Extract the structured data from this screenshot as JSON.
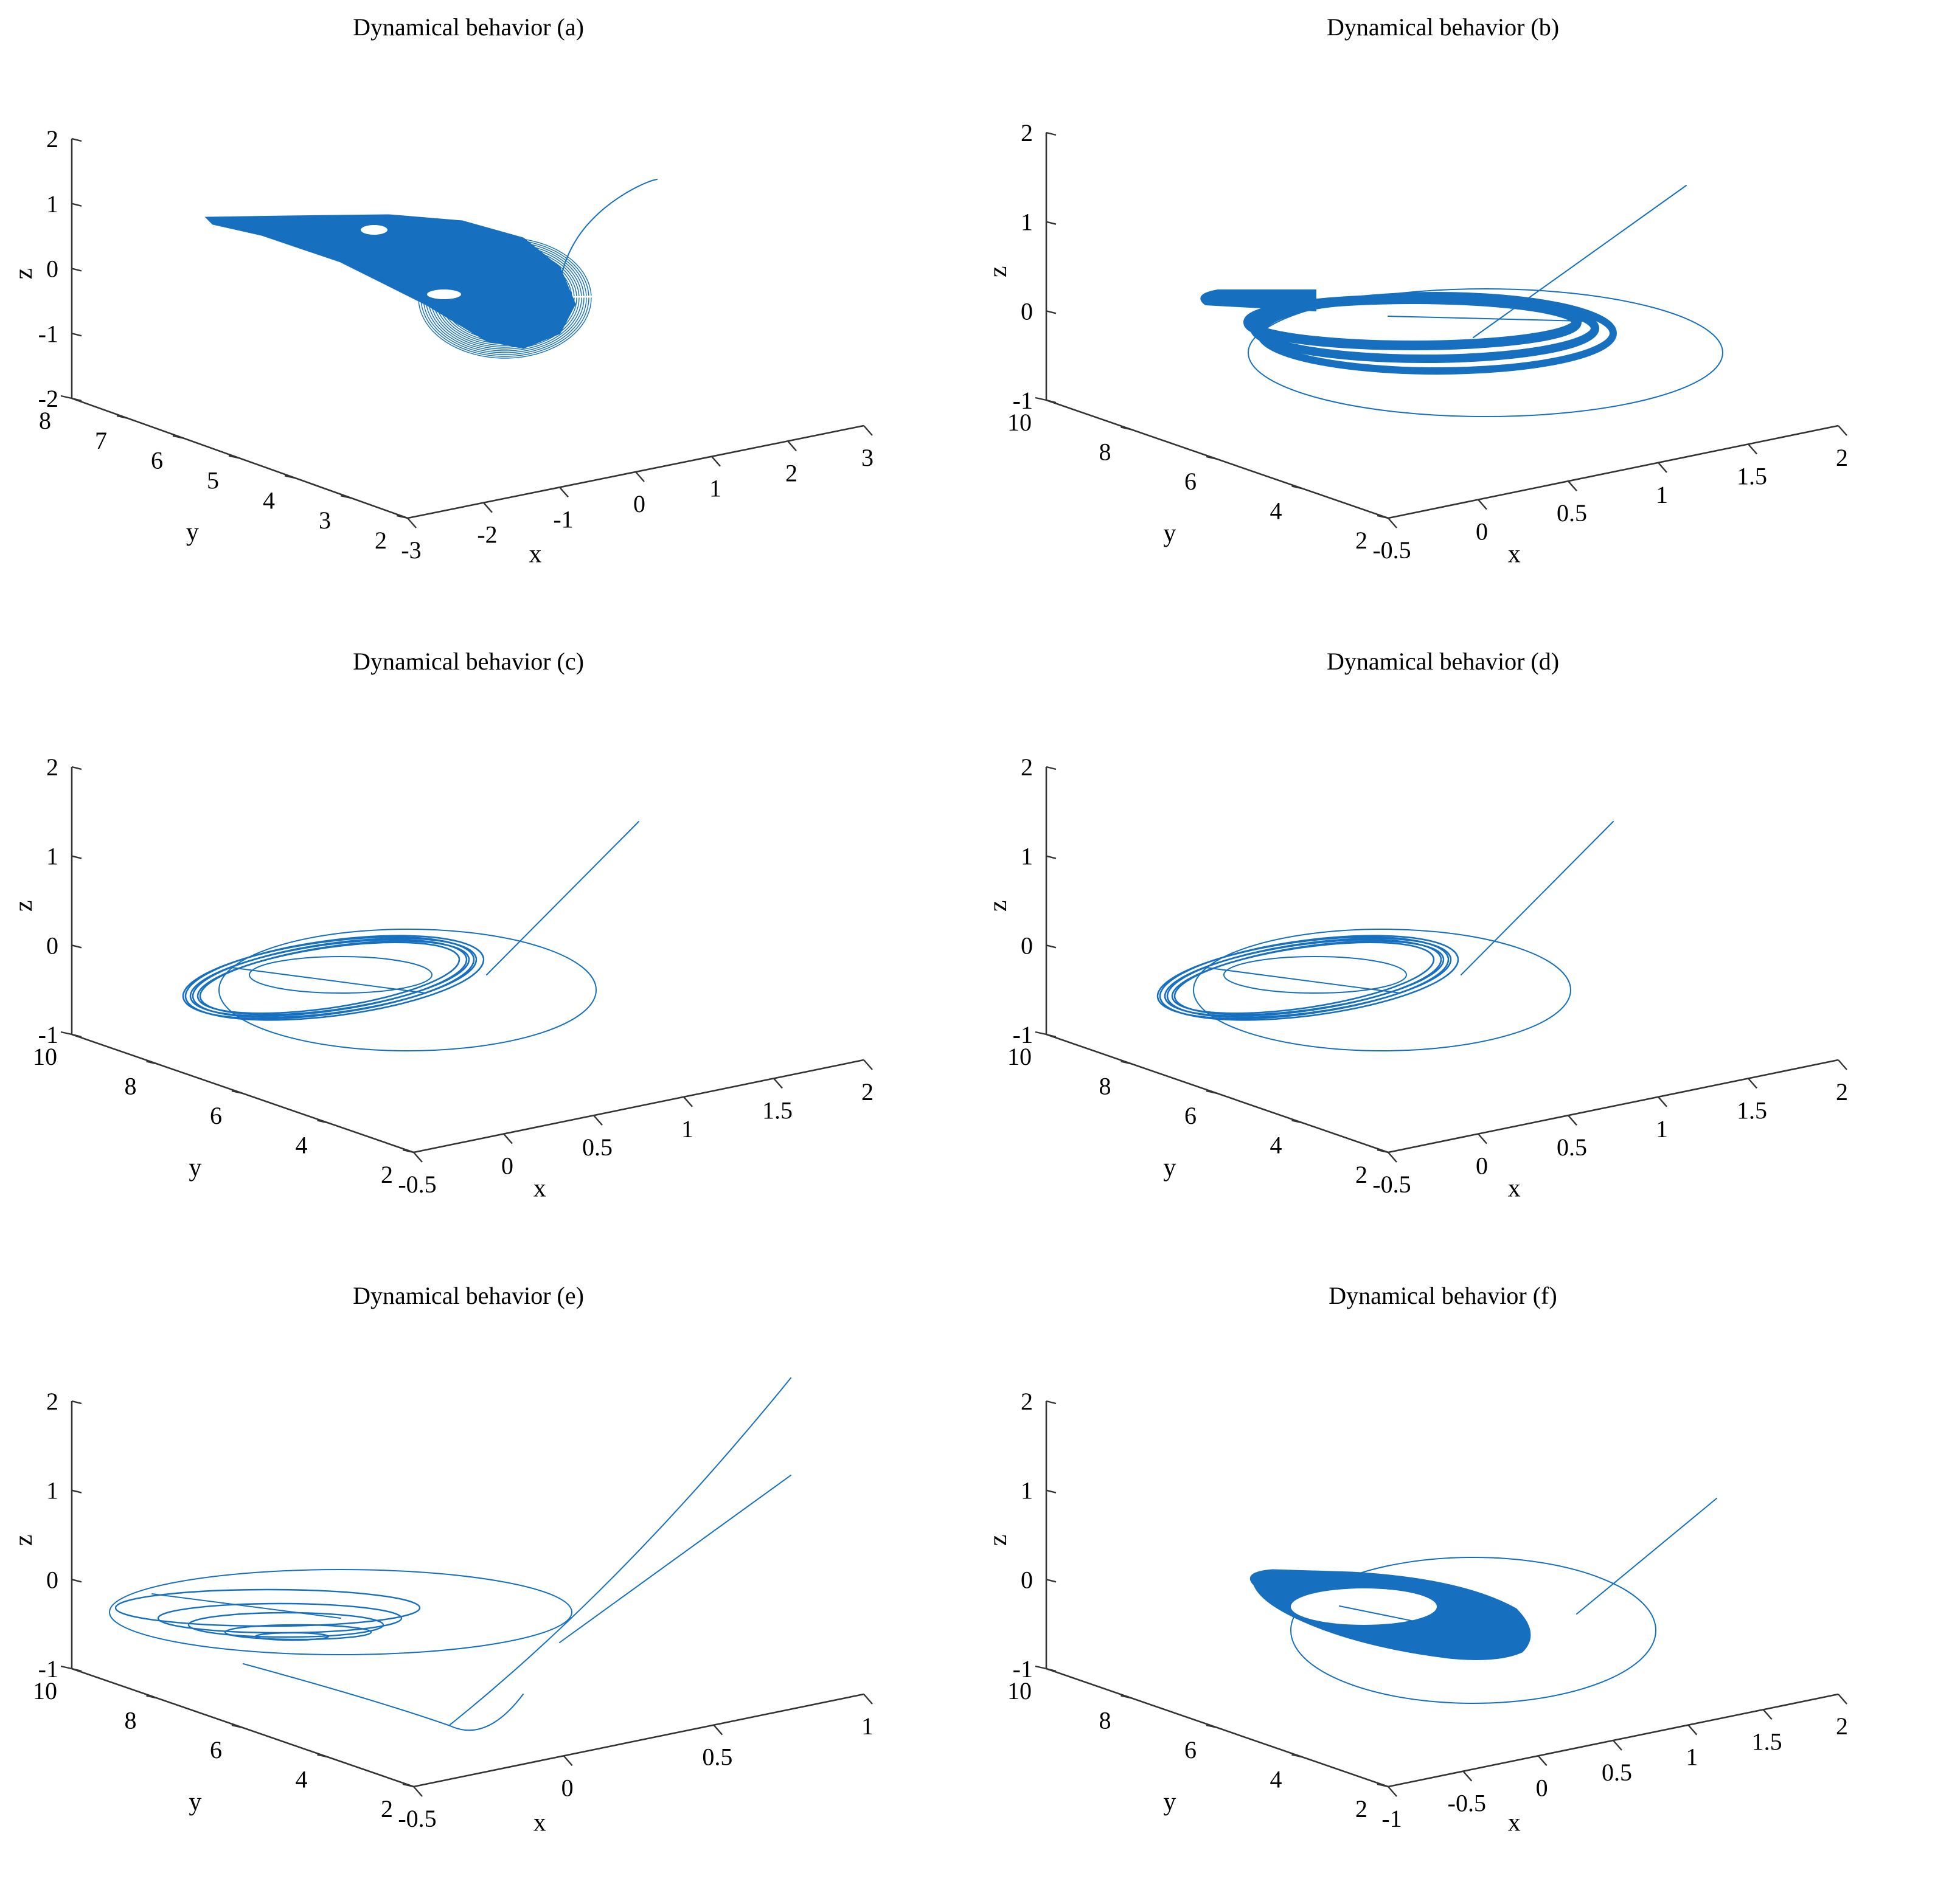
{
  "figure": {
    "layout": "3x2 grid of 3D phase-space trajectory plots"
  },
  "chart_data": [
    {
      "type": "line3d",
      "panel": "a",
      "title": "Dynamical behavior (a)",
      "xlabel": "x",
      "ylabel": "y",
      "zlabel": "z",
      "xlim": [
        -3,
        3
      ],
      "ylim": [
        2,
        8
      ],
      "zlim": [
        -2,
        2
      ],
      "xticks": [
        "-3",
        "-2",
        "-1",
        "0",
        "1",
        "2",
        "3"
      ],
      "yticks": [
        "2",
        "3",
        "4",
        "5",
        "6",
        "7",
        "8"
      ],
      "zticks": [
        "-2",
        "-1",
        "0",
        "1",
        "2"
      ],
      "attractor": {
        "kind": "dense-scroll",
        "color": "#1670bf"
      }
    },
    {
      "type": "line3d",
      "panel": "b",
      "title": "Dynamical behavior (b)",
      "xlabel": "x",
      "ylabel": "y",
      "zlabel": "z",
      "xlim": [
        -0.5,
        2
      ],
      "ylim": [
        2,
        10
      ],
      "zlim": [
        -1,
        2
      ],
      "xticks": [
        "-0.5",
        "0",
        "0.5",
        "1",
        "1.5",
        "2"
      ],
      "yticks": [
        "2",
        "4",
        "6",
        "8",
        "10"
      ],
      "zticks": [
        "-1",
        "0",
        "1",
        "2"
      ],
      "attractor": {
        "kind": "thick-bands",
        "color": "#1670bf"
      }
    },
    {
      "type": "line3d",
      "panel": "c",
      "title": "Dynamical behavior (c)",
      "xlabel": "x",
      "ylabel": "y",
      "zlabel": "z",
      "xlim": [
        -0.5,
        2
      ],
      "ylim": [
        2,
        10
      ],
      "zlim": [
        -1,
        2
      ],
      "xticks": [
        "-0.5",
        "0",
        "0.5",
        "1",
        "1.5",
        "2"
      ],
      "yticks": [
        "2",
        "4",
        "6",
        "8",
        "10"
      ],
      "zticks": [
        "-1",
        "0",
        "1",
        "2"
      ],
      "attractor": {
        "kind": "few-loops",
        "color": "#1670bf"
      }
    },
    {
      "type": "line3d",
      "panel": "d",
      "title": "Dynamical behavior (d)",
      "xlabel": "x",
      "ylabel": "y",
      "zlabel": "z",
      "xlim": [
        -0.5,
        2
      ],
      "ylim": [
        2,
        10
      ],
      "zlim": [
        -1,
        2
      ],
      "xticks": [
        "-0.5",
        "0",
        "0.5",
        "1",
        "1.5",
        "2"
      ],
      "yticks": [
        "2",
        "4",
        "6",
        "8",
        "10"
      ],
      "zticks": [
        "-1",
        "0",
        "1",
        "2"
      ],
      "attractor": {
        "kind": "few-loops",
        "color": "#1670bf"
      }
    },
    {
      "type": "line3d",
      "panel": "e",
      "title": "Dynamical behavior (e)",
      "xlabel": "x",
      "ylabel": "y",
      "zlabel": "z",
      "xlim": [
        -0.5,
        1
      ],
      "ylim": [
        2,
        10
      ],
      "zlim": [
        -1,
        2
      ],
      "xticks": [
        "-0.5",
        "0",
        "0.5",
        "1"
      ],
      "yticks": [
        "2",
        "4",
        "6",
        "8",
        "10"
      ],
      "zticks": [
        "-1",
        "0",
        "1",
        "2"
      ],
      "attractor": {
        "kind": "spiral-decay",
        "color": "#1670bf"
      }
    },
    {
      "type": "line3d",
      "panel": "f",
      "title": "Dynamical behavior (f)",
      "xlabel": "x",
      "ylabel": "y",
      "zlabel": "z",
      "xlim": [
        -1,
        2
      ],
      "ylim": [
        2,
        10
      ],
      "zlim": [
        -1,
        2
      ],
      "xticks": [
        "-1",
        "-0.5",
        "0",
        "0.5",
        "1",
        "1.5",
        "2"
      ],
      "yticks": [
        "2",
        "4",
        "6",
        "8",
        "10"
      ],
      "zticks": [
        "-1",
        "0",
        "1",
        "2"
      ],
      "attractor": {
        "kind": "solid-band",
        "color": "#1670bf"
      }
    }
  ]
}
